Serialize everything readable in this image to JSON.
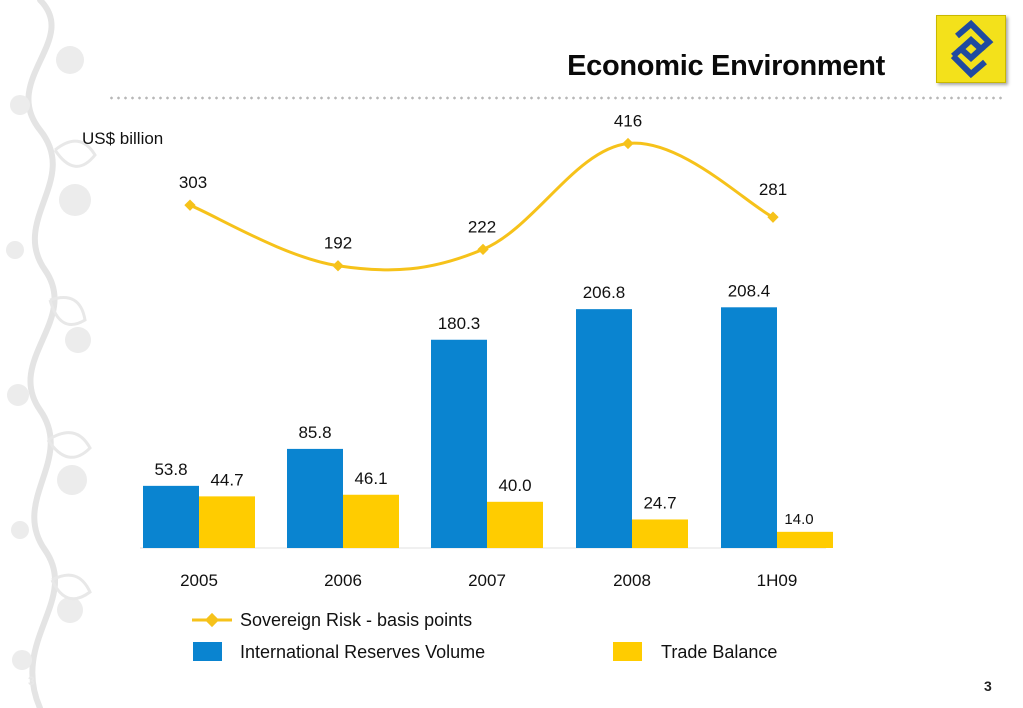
{
  "slide": {
    "title": "Economic Environment",
    "unit": "US$ billion",
    "page_number": "3",
    "page_number_faint": "3"
  },
  "logo": {
    "icon": "banco-do-brasil-logo-icon",
    "color": "#f3e11b",
    "mark_color": "#1f4aa0"
  },
  "legend": {
    "line_label": "Sovereign Risk - basis points",
    "bar1_label": "International Reserves Volume",
    "bar2_label": "Trade Balance"
  },
  "colors": {
    "reserves": "#0a84d0",
    "trade": "#ffcc00",
    "risk": "#f6c21a"
  },
  "chart_data": {
    "type": "bar",
    "categories": [
      "2005",
      "2006",
      "2007",
      "2008",
      "1H09"
    ],
    "ylabel": "US$ billion",
    "series": [
      {
        "name": "International Reserves Volume",
        "type": "bar",
        "values": [
          53.8,
          85.8,
          180.3,
          206.8,
          208.4
        ],
        "labels": [
          "53.8",
          "85.8",
          "180.3",
          "206.8",
          "208.4"
        ]
      },
      {
        "name": "Trade Balance",
        "type": "bar",
        "values": [
          44.7,
          46.1,
          40.0,
          24.7,
          14.0
        ],
        "labels": [
          "44.7",
          "46.1",
          "40.0",
          "24.7",
          "14.0"
        ]
      },
      {
        "name": "Sovereign Risk - basis points",
        "type": "line",
        "values": [
          303,
          192,
          222,
          416,
          281
        ],
        "labels": [
          "303",
          "192",
          "222",
          "416",
          "281"
        ]
      }
    ]
  }
}
